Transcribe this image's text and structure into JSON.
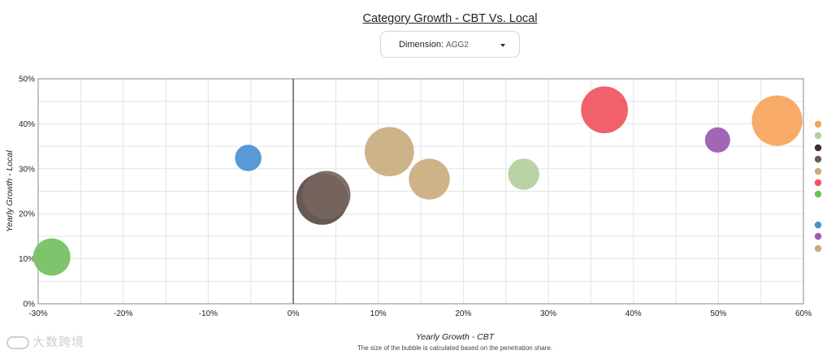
{
  "header": {
    "title": "Category Growth - CBT Vs. Local",
    "dimension_label": "Dimension:",
    "dimension_value": "AGG2"
  },
  "watermark": {
    "text": "大数跨境"
  },
  "chart_data": {
    "type": "scatter",
    "subtype": "bubble",
    "title": "Category Growth - CBT Vs. Local",
    "xlabel": "Yearly Growth - CBT",
    "ylabel": "Yearly Growth - Local",
    "note": "The size of the bubble is calculated based on the penetration share.",
    "xlim": [
      -30,
      60
    ],
    "ylim": [
      0,
      50
    ],
    "x_ticks": [
      "-30%",
      "-20%",
      "-10%",
      "0%",
      "10%",
      "20%",
      "30%",
      "40%",
      "50%",
      "60%"
    ],
    "y_ticks": [
      "0%",
      "10%",
      "20%",
      "30%",
      "40%",
      "50%"
    ],
    "grid": true,
    "legend_position": "right",
    "legend_colors": [
      "#f7a45a",
      "#b3cf9d",
      "#3b3230",
      "#6e5d57",
      "#c9ad7e",
      "#f0535e",
      "#72bf5f",
      "#4a90d2",
      "#9b59b0",
      "#c9ad7e"
    ],
    "points": [
      {
        "x": -28.4,
        "y": 10.4,
        "size": 0.62,
        "color": "#72bf5f"
      },
      {
        "x": -5.3,
        "y": 32.4,
        "size": 0.44,
        "color": "#4a90d2"
      },
      {
        "x": 3.4,
        "y": 23.3,
        "size": 0.86,
        "color": "#5a4a47"
      },
      {
        "x": 3.9,
        "y": 24.2,
        "size": 0.8,
        "color": "#766560"
      },
      {
        "x": 11.3,
        "y": 33.8,
        "size": 0.82,
        "color": "#c9ad7e"
      },
      {
        "x": 16.0,
        "y": 27.7,
        "size": 0.68,
        "color": "#c9ad7e"
      },
      {
        "x": 27.1,
        "y": 28.8,
        "size": 0.52,
        "color": "#b3cf9d"
      },
      {
        "x": 36.6,
        "y": 43.1,
        "size": 0.78,
        "color": "#f0535e"
      },
      {
        "x": 49.9,
        "y": 36.4,
        "size": 0.42,
        "color": "#9b59b0"
      },
      {
        "x": 56.9,
        "y": 40.7,
        "size": 0.84,
        "color": "#f7a45a"
      }
    ]
  }
}
